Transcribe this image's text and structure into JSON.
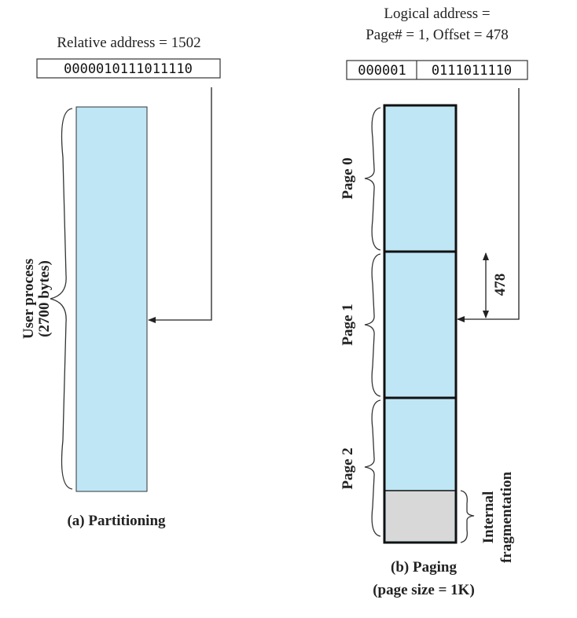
{
  "partitioning": {
    "relative_address_label": "Relative address = 1502",
    "address_bits": "0000010111011110",
    "process_label_line1": "User process",
    "process_label_line2": "(2700 bytes)",
    "caption": "(a) Partitioning",
    "fill_color": "#bfe6f5"
  },
  "paging": {
    "logical_address_line1": "Logical address =",
    "logical_address_line2": "Page# = 1, Offset = 478",
    "page_bits": "000001",
    "offset_bits": "0111011110",
    "pages": [
      "Page 0",
      "Page 1",
      "Page 2"
    ],
    "offset_label": "478",
    "fragmentation_line1": "Internal",
    "fragmentation_line2": "fragmentation",
    "caption_line1": "(b) Paging",
    "caption_line2": "(page size = 1K)",
    "fill_color": "#bfe6f5",
    "fragment_color": "#d8d8d8"
  }
}
